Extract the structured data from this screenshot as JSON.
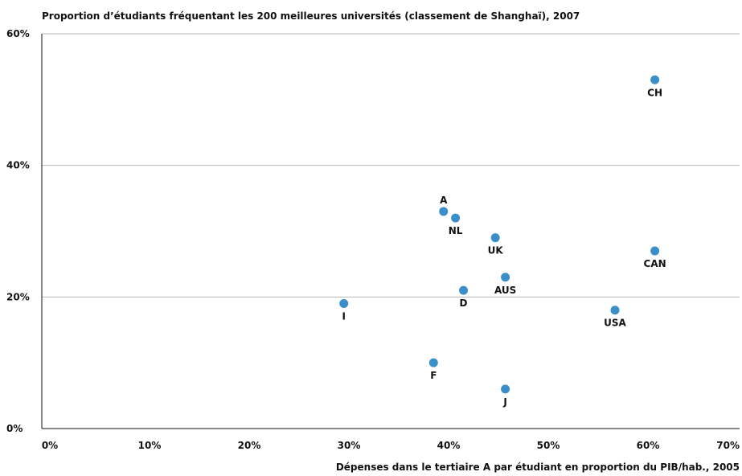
{
  "chart_data": {
    "type": "scatter",
    "title": "Proportion d’étudiants fréquentant les 200 meilleures universités (classement de Shanghaï), 2007",
    "xlabel": "Dépenses dans le tertiaire A par étudiant en proportion du PIB/hab., 2005",
    "ylabel": "",
    "xlim": [
      0,
      70
    ],
    "ylim": [
      0,
      60
    ],
    "x_ticks": [
      "0%",
      "10%",
      "20%",
      "30%",
      "40%",
      "50%",
      "60%",
      "70%"
    ],
    "y_ticks": [
      "0%",
      "20%",
      "40%",
      "60%"
    ],
    "grid": true,
    "points": [
      {
        "label": "CH",
        "x": 61.5,
        "y": 53,
        "label_pos": "below"
      },
      {
        "label": "A",
        "x": 40.3,
        "y": 33,
        "label_pos": "above"
      },
      {
        "label": "NL",
        "x": 41.5,
        "y": 32,
        "label_pos": "below"
      },
      {
        "label": "UK",
        "x": 45.5,
        "y": 29,
        "label_pos": "below"
      },
      {
        "label": "CAN",
        "x": 61.5,
        "y": 27,
        "label_pos": "below"
      },
      {
        "label": "AUS",
        "x": 46.5,
        "y": 23,
        "label_pos": "below"
      },
      {
        "label": "D",
        "x": 42.3,
        "y": 21,
        "label_pos": "below"
      },
      {
        "label": "I",
        "x": 30.3,
        "y": 19,
        "label_pos": "below"
      },
      {
        "label": "USA",
        "x": 57.5,
        "y": 18,
        "label_pos": "below"
      },
      {
        "label": "F",
        "x": 39.3,
        "y": 10,
        "label_pos": "below"
      },
      {
        "label": "J",
        "x": 46.5,
        "y": 6,
        "label_pos": "below"
      }
    ]
  }
}
